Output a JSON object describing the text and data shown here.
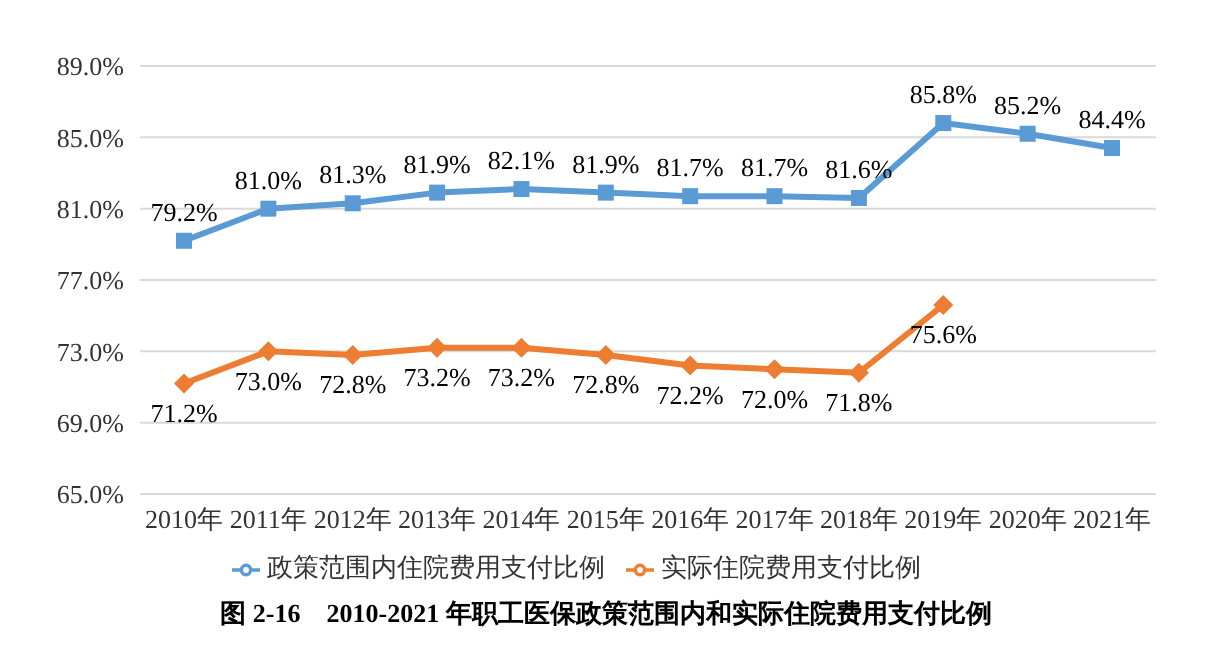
{
  "chart_data": {
    "type": "line",
    "categories": [
      "2010年",
      "2011年",
      "2012年",
      "2013年",
      "2014年",
      "2015年",
      "2016年",
      "2017年",
      "2018年",
      "2019年",
      "2020年",
      "2021年"
    ],
    "series": [
      {
        "name": "政策范围内住院费用支付比例",
        "color": "#5b9bd5",
        "marker": "square",
        "values": [
          79.2,
          81.0,
          81.3,
          81.9,
          82.1,
          81.9,
          81.7,
          81.7,
          81.6,
          85.8,
          85.2,
          84.4
        ],
        "value_labels": [
          "79.2%",
          "81.0%",
          "81.3%",
          "81.9%",
          "82.1%",
          "81.9%",
          "81.7%",
          "81.7%",
          "81.6%",
          "85.8%",
          "85.2%",
          "84.4%"
        ]
      },
      {
        "name": "实际住院费用支付比例",
        "color": "#ed7d31",
        "marker": "diamond",
        "values": [
          71.2,
          73.0,
          72.8,
          73.2,
          73.2,
          72.8,
          72.2,
          72.0,
          71.8,
          75.6,
          null,
          null
        ],
        "value_labels": [
          "71.2%",
          "73.0%",
          "72.8%",
          "73.2%",
          "73.2%",
          "72.8%",
          "72.2%",
          "72.0%",
          "71.8%",
          "75.6%",
          null,
          null
        ]
      }
    ],
    "ylim": [
      65,
      89
    ],
    "yticks": [
      {
        "value": 65,
        "label": "65.0%"
      },
      {
        "value": 69,
        "label": "69.0%"
      },
      {
        "value": 73,
        "label": "73.0%"
      },
      {
        "value": 77,
        "label": "77.0%"
      },
      {
        "value": 81,
        "label": "81.0%"
      },
      {
        "value": 85,
        "label": "85.0%"
      },
      {
        "value": 89,
        "label": "89.0%"
      }
    ],
    "grid": "y",
    "legend": "bottom",
    "line_style": "solid",
    "annotations": [
      "图 2-16    2010-2021 年职工医保政策范围内和实际住院费用支付比例"
    ]
  }
}
